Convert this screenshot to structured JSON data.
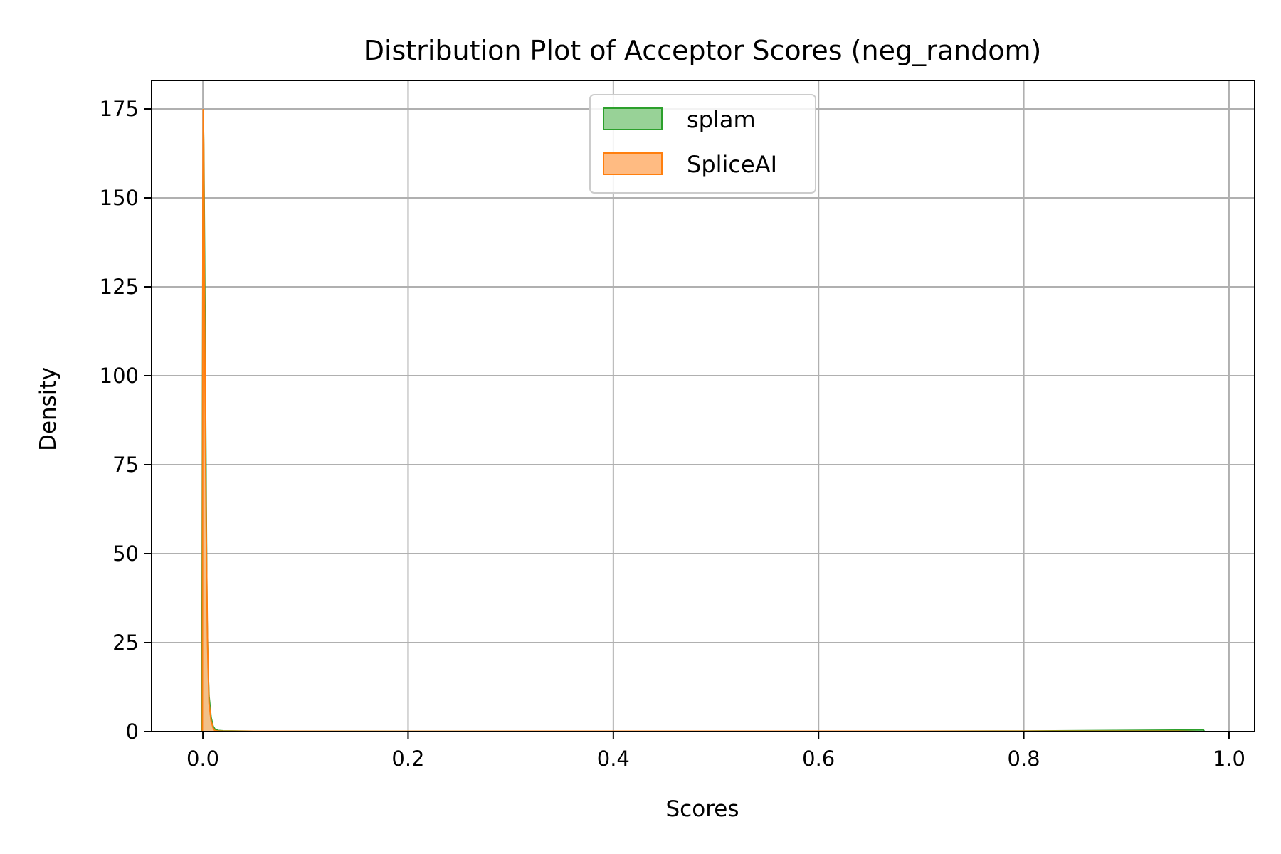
{
  "chart_data": {
    "type": "area",
    "title": "Distribution Plot of Acceptor Scores (neg_random)",
    "xlabel": "Scores",
    "ylabel": "Density",
    "xlim": [
      -0.05,
      1.025
    ],
    "ylim": [
      0,
      183
    ],
    "xticks": [
      0.0,
      0.2,
      0.4,
      0.6,
      0.8,
      1.0
    ],
    "xtick_labels": [
      "0.0",
      "0.2",
      "0.4",
      "0.6",
      "0.8",
      "1.0"
    ],
    "yticks": [
      0,
      25,
      50,
      75,
      100,
      125,
      150,
      175
    ],
    "ytick_labels": [
      "0",
      "25",
      "50",
      "75",
      "100",
      "125",
      "150",
      "175"
    ],
    "grid": true,
    "legend_position": "upper-center",
    "series": [
      {
        "name": "splam",
        "line_color": "#2ca02c",
        "fill_color": "#98d297",
        "x": [
          -0.001,
          0.0,
          0.0005,
          0.001,
          0.002,
          0.003,
          0.004,
          0.005,
          0.006,
          0.008,
          0.01,
          0.012,
          0.015,
          0.02,
          0.05,
          0.2,
          0.4,
          0.6,
          0.8,
          0.95,
          0.975,
          0.976
        ],
        "y": [
          0,
          140,
          172,
          160,
          120,
          75,
          33,
          18,
          10,
          4,
          1.5,
          0.6,
          0.3,
          0.2,
          0.1,
          0.05,
          0.05,
          0.08,
          0.15,
          0.4,
          0.5,
          0
        ]
      },
      {
        "name": "SpliceAI",
        "line_color": "#ff7f0e",
        "fill_color": "#ffbb82",
        "x": [
          -0.0005,
          0.0,
          0.0003,
          0.0008,
          0.0015,
          0.0025,
          0.0035,
          0.0045,
          0.006,
          0.008,
          0.01,
          0.011,
          0.012,
          0.015,
          0.02,
          0.2,
          0.4,
          0.6,
          0.8,
          0.95,
          0.97
        ],
        "y": [
          0,
          150,
          175,
          165,
          125,
          80,
          50,
          25,
          8,
          3,
          1,
          0.5,
          0.2,
          0.15,
          0.1,
          0.08,
          0.1,
          0.1,
          0.1,
          0.1,
          0
        ]
      }
    ]
  }
}
